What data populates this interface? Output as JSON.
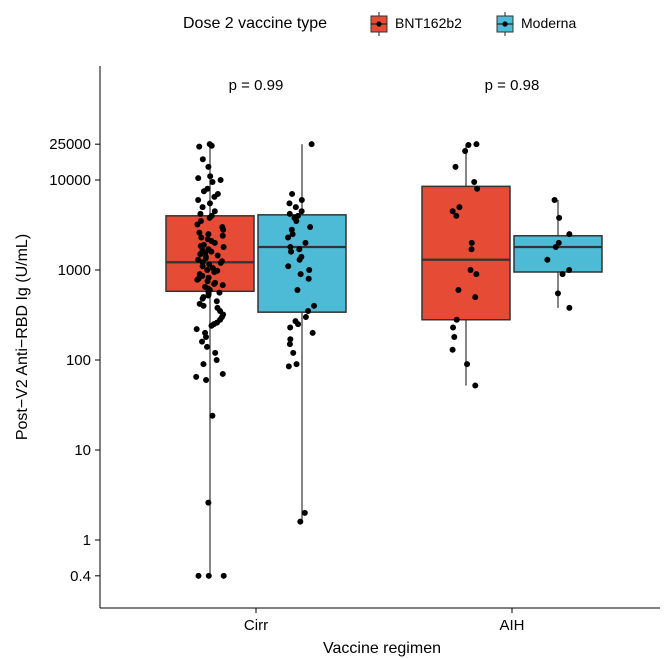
{
  "chart_data": {
    "type": "boxplot",
    "xlabel": "Vaccine regimen",
    "ylabel": "Post−V2 Anti−RBD Ig (U/mL)",
    "yscale": "log10",
    "ylim": [
      0.3,
      130000
    ],
    "yticks": [
      0.4,
      1,
      10,
      100,
      1000,
      10000,
      25000
    ],
    "ytick_labels": [
      "0.4",
      "1",
      "10",
      "100",
      "1000",
      "10000",
      "25000"
    ],
    "categories": [
      "Cirr",
      "AIH"
    ],
    "grid": false,
    "legend": {
      "title": "Dose 2 vaccine type",
      "position": "top",
      "entries": [
        "BNT162b2",
        "Moderna"
      ]
    },
    "colors": {
      "BNT162b2": "#E64B35",
      "Moderna": "#4DBBD5"
    },
    "annotations": [
      {
        "category": "Cirr",
        "text": "p = 0.99"
      },
      {
        "category": "AIH",
        "text": "p = 0.98"
      }
    ],
    "series": [
      {
        "name": "BNT162b2",
        "boxes": [
          {
            "category": "Cirr",
            "min": 0.4,
            "q1": 580,
            "median": 1220,
            "q3": 4000,
            "max": 25000,
            "points": [
              25000,
              24000,
              23500,
              17000,
              14000,
              11000,
              10500,
              10000,
              9500,
              8000,
              7500,
              7000,
              6500,
              6000,
              5500,
              5000,
              4500,
              4200,
              4000,
              3800,
              3500,
              3200,
              3000,
              2800,
              2600,
              2500,
              2400,
              2300,
              2200,
              2100,
              2000,
              1900,
              1850,
              1800,
              1700,
              1650,
              1600,
              1550,
              1500,
              1450,
              1400,
              1350,
              1300,
              1250,
              1220,
              1200,
              1150,
              1100,
              1050,
              1000,
              980,
              950,
              900,
              860,
              820,
              800,
              780,
              750,
              720,
              700,
              680,
              650,
              620,
              600,
              580,
              560,
              540,
              520,
              500,
              480,
              450,
              420,
              400,
              380,
              350,
              320,
              300,
              280,
              260,
              250,
              240,
              220,
              200,
              180,
              160,
              140,
              120,
              100,
              90,
              70,
              65,
              60,
              24,
              2.6,
              0.4,
              0.4,
              0.4
            ]
          },
          {
            "category": "AIH",
            "min": 52,
            "q1": 280,
            "median": 1300,
            "q3": 8500,
            "max": 25000,
            "points": [
              25000,
              24500,
              21000,
              14000,
              9500,
              8000,
              5000,
              4500,
              4000,
              2000,
              1700,
              1000,
              900,
              600,
              500,
              280,
              230,
              180,
              130,
              90,
              52
            ]
          }
        ]
      },
      {
        "name": "Moderna",
        "boxes": [
          {
            "category": "Cirr",
            "min": 1.6,
            "q1": 340,
            "median": 1800,
            "q3": 4100,
            "max": 25000,
            "points": [
              25000,
              7000,
              6000,
              5500,
              5000,
              4500,
              4200,
              4000,
              3800,
              3500,
              3000,
              2800,
              2500,
              2300,
              2000,
              1800,
              1700,
              1600,
              1400,
              1300,
              1100,
              1000,
              900,
              800,
              600,
              400,
              350,
              300,
              270,
              250,
              230,
              200,
              170,
              150,
              120,
              90,
              85,
              2.0,
              1.6
            ]
          },
          {
            "category": "AIH",
            "min": 380,
            "q1": 950,
            "median": 1800,
            "q3": 2400,
            "max": 6000,
            "points": [
              6000,
              3800,
              2500,
              2000,
              1800,
              1300,
              1000,
              900,
              550,
              380
            ]
          }
        ]
      }
    ]
  }
}
